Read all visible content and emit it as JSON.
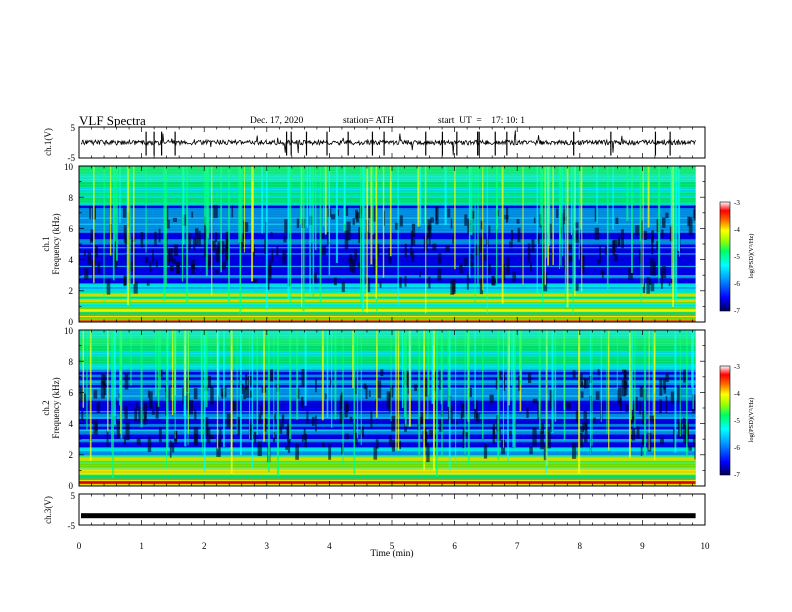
{
  "header": {
    "title": "VLF Spectra",
    "date": "Dec. 17, 2020",
    "station": "station= ATH",
    "start_ut": "start  UT  =    17: 10: 1"
  },
  "chart_data": [
    {
      "type": "line",
      "panel": "ch1-waveform",
      "ylabel": "ch.1(V)",
      "ylim": [
        -5,
        5
      ],
      "y_tick_labels": [
        "5",
        "-5"
      ],
      "baseline_value": 0,
      "color": "#000000"
    },
    {
      "type": "heatmap",
      "panel": "ch1-spectrogram",
      "ylabel": [
        "ch.1",
        "Frequency (kHz)"
      ],
      "ylim": [
        0,
        10
      ],
      "y_tick_labels": [
        "0",
        "2",
        "4",
        "6",
        "8",
        "10"
      ],
      "xlim": [
        0,
        10
      ],
      "colorbar": {
        "label": "log(PSD)(V²/Hz)",
        "range": [
          -7,
          -3
        ],
        "tick_labels": [
          "-3",
          "-4",
          "-5",
          "-6",
          "-7"
        ]
      }
    },
    {
      "type": "heatmap",
      "panel": "ch2-spectrogram",
      "ylabel": [
        "ch.2",
        "Frequency (kHz)"
      ],
      "ylim": [
        0,
        10
      ],
      "y_tick_labels": [
        "0",
        "2",
        "4",
        "6",
        "8",
        "10"
      ],
      "xlim": [
        0,
        10
      ],
      "colorbar": {
        "label": "log(PSD)(V²/Hz)",
        "range": [
          -7,
          -3
        ],
        "tick_labels": [
          "-3",
          "-4",
          "-5",
          "-6",
          "-7"
        ]
      }
    },
    {
      "type": "line",
      "panel": "ch3-waveform",
      "ylabel": "ch.3(V)",
      "ylim": [
        -5,
        5
      ],
      "y_tick_labels": [
        "5",
        "-5"
      ],
      "baseline_value": -2,
      "color": "#000000"
    }
  ],
  "x_axis": {
    "label": "Time (min)",
    "xlim": [
      0,
      10
    ],
    "tick_labels": [
      "0",
      "1",
      "2",
      "3",
      "4",
      "5",
      "6",
      "7",
      "8",
      "9",
      "10"
    ],
    "data_end": 9.85
  },
  "colors": {
    "colormap": [
      "#00008b",
      "#0000ff",
      "#00a0ff",
      "#00ffff",
      "#00ff80",
      "#80ff00",
      "#ffff00",
      "#ff8000",
      "#ff0000",
      "#ffffff"
    ]
  }
}
